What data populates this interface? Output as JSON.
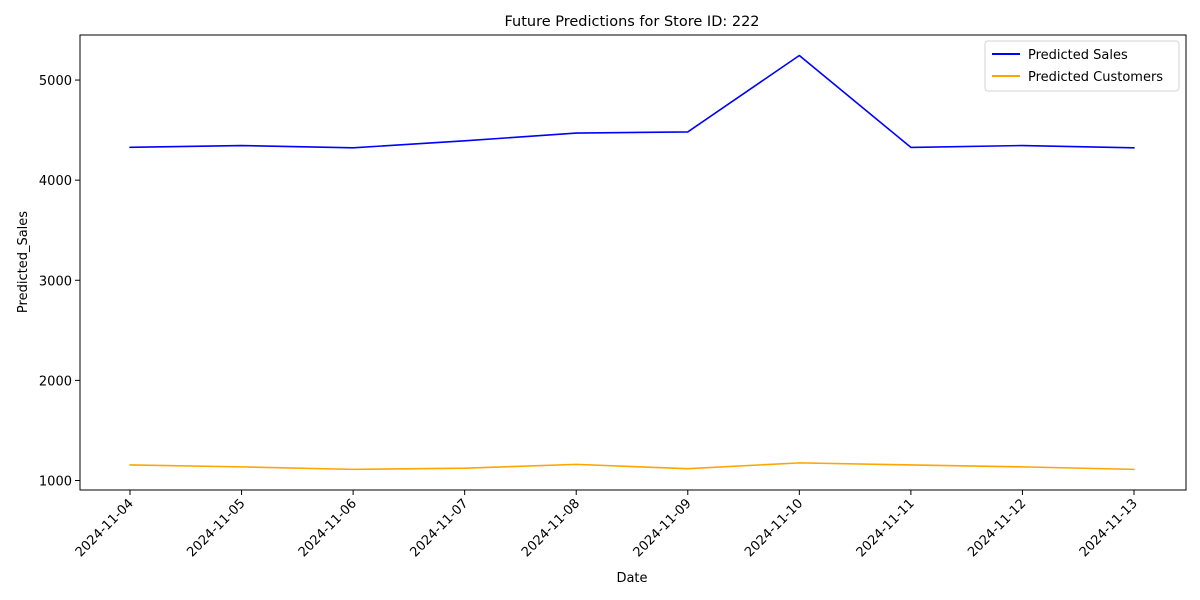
{
  "chart_data": {
    "type": "line",
    "title": "Future Predictions for Store ID: 222",
    "xlabel": "Date",
    "ylabel": "Predicted_Sales",
    "x": [
      "2024-11-04",
      "2024-11-05",
      "2024-11-06",
      "2024-11-07",
      "2024-11-08",
      "2024-11-09",
      "2024-11-10",
      "2024-11-11",
      "2024-11-12",
      "2024-11-13"
    ],
    "yticks": [
      1000,
      2000,
      3000,
      4000,
      5000
    ],
    "ylim": [
      905,
      5450
    ],
    "grid": false,
    "legend_position": "top-right",
    "series": [
      {
        "name": "Predicted Sales",
        "color": "#0000ff",
        "values": [
          4328,
          4346,
          4323,
          4393,
          4470,
          4482,
          5245,
          4327,
          4346,
          4323
        ]
      },
      {
        "name": "Predicted Customers",
        "color": "#ffa500",
        "values": [
          1155,
          1136,
          1111,
          1123,
          1161,
          1118,
          1176,
          1155,
          1136,
          1111
        ]
      }
    ]
  }
}
